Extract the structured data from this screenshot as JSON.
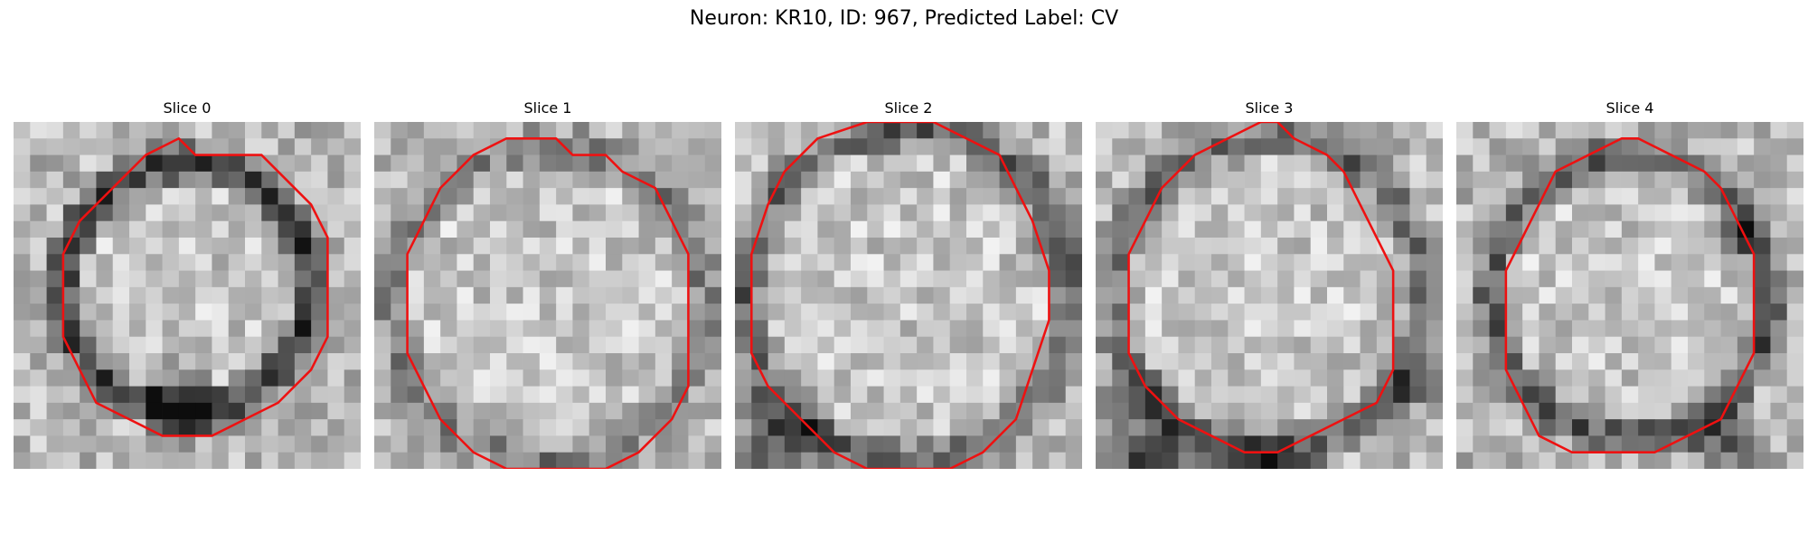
{
  "figure": {
    "title": "Neuron: KR10, ID: 967, Predicted Label: CV",
    "contour_color": "#ee1111"
  },
  "panels": [
    {
      "title": "Slice 0",
      "contour": [
        [
          10,
          1
        ],
        [
          11,
          2
        ],
        [
          15,
          2
        ],
        [
          18,
          5
        ],
        [
          19,
          7
        ],
        [
          19,
          10
        ],
        [
          19,
          13
        ],
        [
          18,
          15
        ],
        [
          16,
          17
        ],
        [
          14,
          18
        ],
        [
          12,
          19
        ],
        [
          9,
          19
        ],
        [
          7,
          18
        ],
        [
          5,
          17
        ],
        [
          4,
          15
        ],
        [
          3,
          13
        ],
        [
          3,
          11
        ],
        [
          3,
          8
        ],
        [
          4,
          6
        ],
        [
          6,
          4
        ],
        [
          8,
          2
        ]
      ]
    },
    {
      "title": "Slice 1",
      "contour": [
        [
          11,
          1
        ],
        [
          12,
          2
        ],
        [
          14,
          2
        ],
        [
          15,
          3
        ],
        [
          17,
          4
        ],
        [
          18,
          6
        ],
        [
          19,
          8
        ],
        [
          19,
          10
        ],
        [
          19,
          13
        ],
        [
          19,
          16
        ],
        [
          18,
          18
        ],
        [
          16,
          20
        ],
        [
          14,
          21
        ],
        [
          11,
          21
        ],
        [
          8,
          21
        ],
        [
          6,
          20
        ],
        [
          4,
          18
        ],
        [
          3,
          16
        ],
        [
          2,
          14
        ],
        [
          2,
          11
        ],
        [
          2,
          8
        ],
        [
          3,
          6
        ],
        [
          4,
          4
        ],
        [
          6,
          2
        ],
        [
          8,
          1
        ]
      ]
    },
    {
      "title": "Slice 2",
      "contour": [
        [
          10,
          0
        ],
        [
          12,
          0
        ],
        [
          14,
          1
        ],
        [
          16,
          2
        ],
        [
          17,
          4
        ],
        [
          18,
          6
        ],
        [
          19,
          9
        ],
        [
          19,
          12
        ],
        [
          18,
          15
        ],
        [
          17,
          18
        ],
        [
          15,
          20
        ],
        [
          13,
          21
        ],
        [
          10,
          21
        ],
        [
          8,
          21
        ],
        [
          6,
          20
        ],
        [
          4,
          18
        ],
        [
          2,
          16
        ],
        [
          1,
          14
        ],
        [
          1,
          11
        ],
        [
          1,
          8
        ],
        [
          2,
          5
        ],
        [
          3,
          3
        ],
        [
          5,
          1
        ],
        [
          8,
          0
        ]
      ]
    },
    {
      "title": "Slice 3",
      "contour": [
        [
          10,
          0
        ],
        [
          11,
          0
        ],
        [
          12,
          1
        ],
        [
          14,
          2
        ],
        [
          15,
          3
        ],
        [
          16,
          5
        ],
        [
          17,
          7
        ],
        [
          18,
          9
        ],
        [
          18,
          11
        ],
        [
          18,
          13
        ],
        [
          18,
          15
        ],
        [
          17,
          17
        ],
        [
          15,
          18
        ],
        [
          13,
          19
        ],
        [
          11,
          20
        ],
        [
          9,
          20
        ],
        [
          7,
          19
        ],
        [
          5,
          18
        ],
        [
          3,
          16
        ],
        [
          2,
          14
        ],
        [
          2,
          11
        ],
        [
          2,
          8
        ],
        [
          3,
          6
        ],
        [
          4,
          4
        ],
        [
          6,
          2
        ],
        [
          8,
          1
        ]
      ]
    },
    {
      "title": "Slice 4",
      "contour": [
        [
          10,
          1
        ],
        [
          11,
          1
        ],
        [
          13,
          2
        ],
        [
          15,
          3
        ],
        [
          16,
          4
        ],
        [
          17,
          6
        ],
        [
          18,
          8
        ],
        [
          18,
          10
        ],
        [
          18,
          12
        ],
        [
          18,
          14
        ],
        [
          17,
          16
        ],
        [
          16,
          18
        ],
        [
          14,
          19
        ],
        [
          12,
          20
        ],
        [
          9,
          20
        ],
        [
          7,
          20
        ],
        [
          5,
          19
        ],
        [
          4,
          17
        ],
        [
          3,
          15
        ],
        [
          3,
          13
        ],
        [
          3,
          11
        ],
        [
          3,
          9
        ],
        [
          4,
          7
        ],
        [
          5,
          5
        ],
        [
          6,
          3
        ],
        [
          8,
          2
        ]
      ]
    }
  ]
}
